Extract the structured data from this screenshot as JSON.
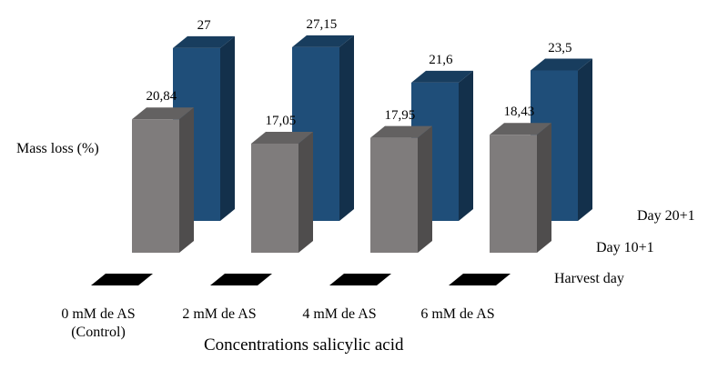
{
  "chart_data": {
    "type": "bar",
    "title": "",
    "ylabel": "Mass loss (%)",
    "xlabel": "Concentrations salicylic acid",
    "categories": [
      "0 mM de AS\n(Control)",
      "2 mM de AS",
      "4 mM de AS",
      "6 mM de AS"
    ],
    "series": [
      {
        "name": "Harvest day",
        "values": [
          0,
          0,
          0,
          0
        ],
        "labels": [
          "",
          "",
          "",
          ""
        ],
        "color": "#000000"
      },
      {
        "name": "Day 10+1",
        "values": [
          20.84,
          17.05,
          17.95,
          18.43
        ],
        "labels": [
          "20,84",
          "17,05",
          "17,95",
          "18,43"
        ],
        "color": "#7f7c7c"
      },
      {
        "name": "Day 20+1",
        "values": [
          27,
          27.15,
          21.6,
          23.5
        ],
        "labels": [
          "27",
          "27,15",
          "21,6",
          "23,5"
        ],
        "color": "#1f4e79"
      }
    ],
    "ylim": [
      0,
      30
    ],
    "grid": false,
    "style": "3d-column"
  }
}
